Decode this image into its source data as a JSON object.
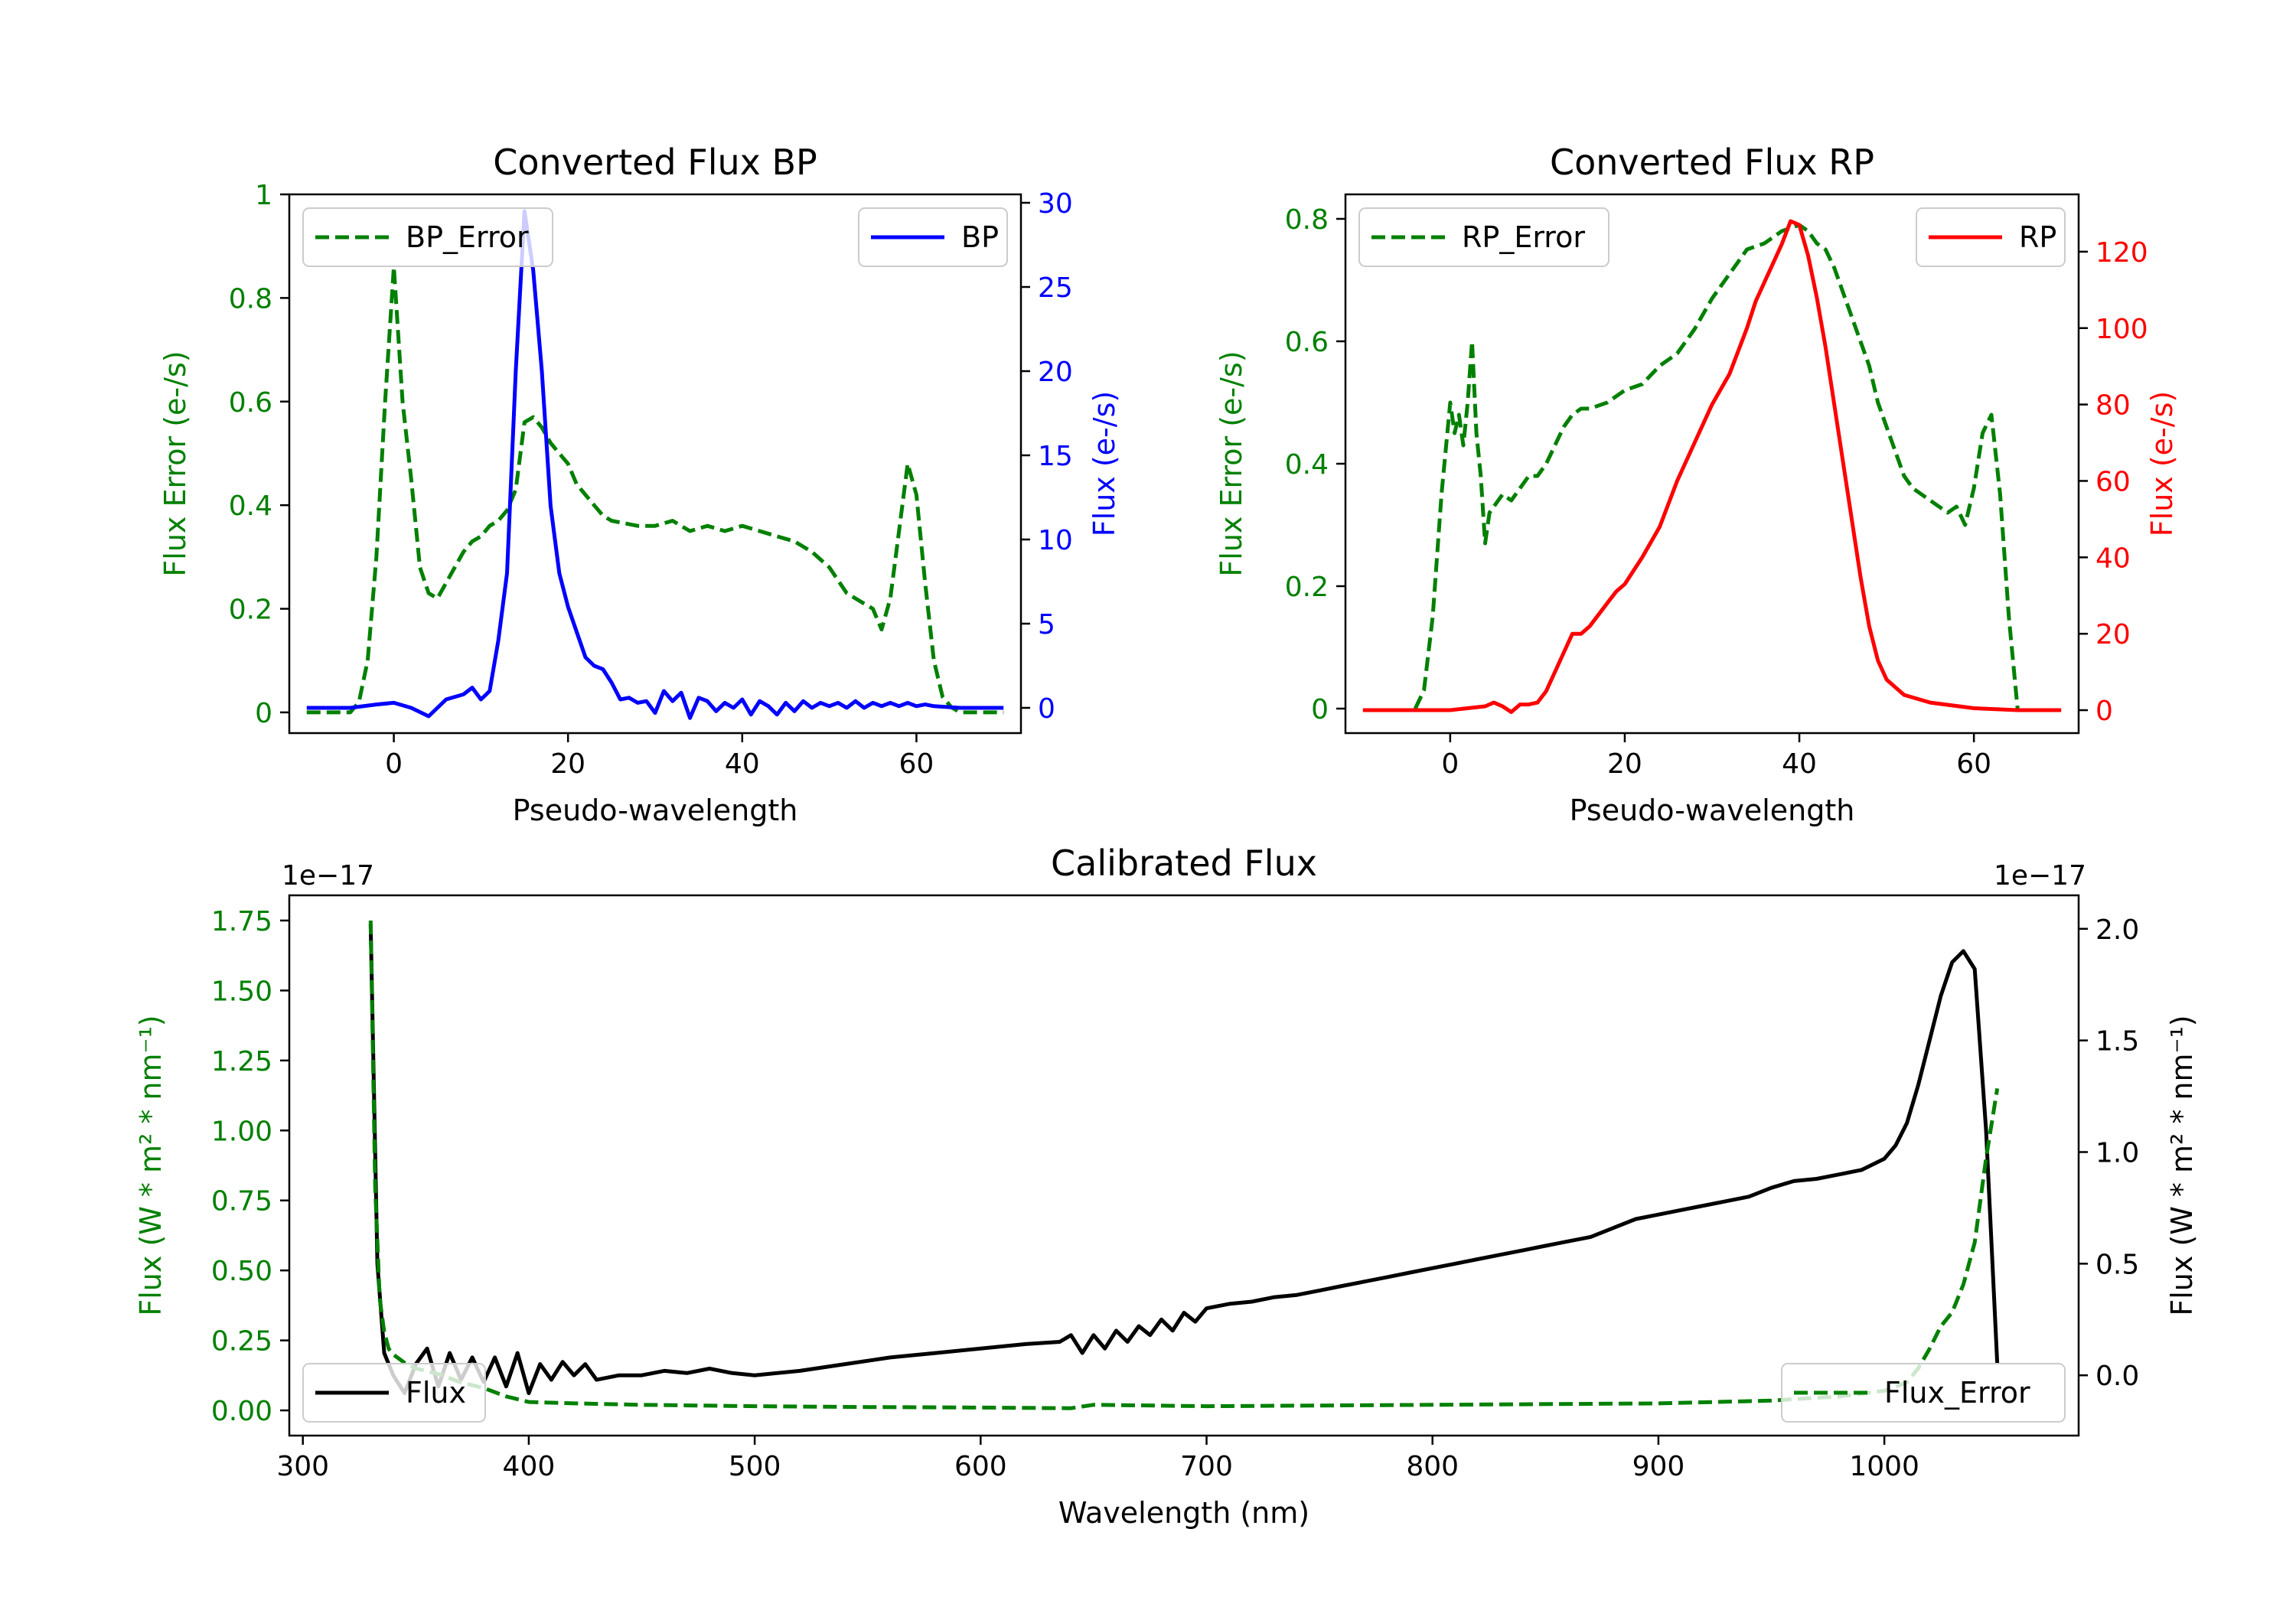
{
  "chart_data": [
    {
      "type": "line",
      "title": "Converted Flux BP",
      "xlabel": "Pseudo-wavelength",
      "xlim": [
        -12,
        72
      ],
      "xticks": [
        0,
        20,
        40,
        60
      ],
      "left_axis": {
        "label": "Flux Error (e-/s)",
        "color": "#008000",
        "ylim": [
          -0.04,
          1.0
        ],
        "ticks": [
          0.0,
          0.2,
          0.4,
          0.6,
          0.8,
          1.0
        ]
      },
      "right_axis": {
        "label": "Flux (e-/s)",
        "color": "#0000ff",
        "ylim": [
          -1.5,
          30.5
        ],
        "ticks": [
          0,
          5,
          10,
          15,
          20,
          25,
          30
        ]
      },
      "series": [
        {
          "name": "BP_Error",
          "axis": "left",
          "style": "dashed",
          "color": "#008000",
          "x": [
            -10,
            -5,
            -4,
            -3,
            -2,
            -1,
            0,
            1,
            2,
            3,
            4,
            5,
            6,
            7,
            8,
            9,
            10,
            11,
            12,
            13,
            14,
            15,
            16,
            17,
            18,
            19,
            20,
            21,
            22,
            23,
            24,
            25,
            28,
            30,
            32,
            34,
            36,
            38,
            40,
            42,
            44,
            46,
            48,
            50,
            52,
            54,
            55,
            56,
            57,
            58,
            59,
            60,
            61,
            62,
            63,
            64,
            65,
            70
          ],
          "y": [
            0.0,
            0.0,
            0.02,
            0.1,
            0.3,
            0.6,
            0.86,
            0.6,
            0.45,
            0.28,
            0.23,
            0.22,
            0.25,
            0.28,
            0.31,
            0.33,
            0.34,
            0.36,
            0.37,
            0.39,
            0.43,
            0.56,
            0.57,
            0.55,
            0.52,
            0.5,
            0.48,
            0.44,
            0.42,
            0.4,
            0.38,
            0.37,
            0.36,
            0.36,
            0.37,
            0.35,
            0.36,
            0.35,
            0.36,
            0.35,
            0.34,
            0.33,
            0.31,
            0.28,
            0.23,
            0.21,
            0.2,
            0.16,
            0.22,
            0.35,
            0.48,
            0.42,
            0.25,
            0.1,
            0.03,
            0.01,
            0.0,
            0.0
          ]
        },
        {
          "name": "BP",
          "axis": "right",
          "style": "solid",
          "color": "#0000ff",
          "x": [
            -10,
            -5,
            -2,
            0,
            2,
            4,
            6,
            8,
            9,
            10,
            11,
            12,
            13,
            14,
            15,
            16,
            17,
            18,
            19,
            20,
            21,
            22,
            23,
            24,
            25,
            26,
            27,
            28,
            29,
            30,
            31,
            32,
            33,
            34,
            35,
            36,
            37,
            38,
            39,
            40,
            41,
            42,
            43,
            44,
            45,
            46,
            47,
            48,
            49,
            50,
            51,
            52,
            53,
            54,
            55,
            56,
            57,
            58,
            59,
            60,
            61,
            62,
            65,
            70
          ],
          "y": [
            0,
            0,
            0.2,
            0.3,
            0.0,
            -0.5,
            0.5,
            0.8,
            1.2,
            0.5,
            1.0,
            4.0,
            8.0,
            20.0,
            29.5,
            26.0,
            20.0,
            12.0,
            8.0,
            6.0,
            4.5,
            3.0,
            2.5,
            2.3,
            1.5,
            0.5,
            0.6,
            0.3,
            0.4,
            -0.3,
            1.0,
            0.4,
            0.9,
            -0.6,
            0.6,
            0.4,
            -0.2,
            0.3,
            0.0,
            0.5,
            -0.4,
            0.4,
            0.1,
            -0.4,
            0.3,
            -0.2,
            0.4,
            0.0,
            0.3,
            0.1,
            0.3,
            0.0,
            0.4,
            0.0,
            0.3,
            0.1,
            0.3,
            0.1,
            0.3,
            0.1,
            0.2,
            0.1,
            0.0,
            0.0
          ]
        }
      ],
      "legend": [
        {
          "label": "BP_Error",
          "position": "upper-left"
        },
        {
          "label": "BP",
          "position": "upper-right"
        }
      ]
    },
    {
      "type": "line",
      "title": "Converted Flux RP",
      "xlabel": "Pseudo-wavelength",
      "xlim": [
        -12,
        72
      ],
      "xticks": [
        0,
        20,
        40,
        60
      ],
      "left_axis": {
        "label": "Flux Error (e-/s)",
        "color": "#008000",
        "ylim": [
          -0.04,
          0.84
        ],
        "ticks": [
          0.0,
          0.2,
          0.4,
          0.6,
          0.8
        ]
      },
      "right_axis": {
        "label": "Flux (e-/s)",
        "color": "#ff0000",
        "ylim": [
          -6,
          135
        ],
        "ticks": [
          0,
          20,
          40,
          60,
          80,
          100,
          120
        ]
      },
      "series": [
        {
          "name": "RP_Error",
          "axis": "left",
          "style": "dashed",
          "color": "#008000",
          "x": [
            -4,
            -3,
            -2,
            -1,
            0,
            0.5,
            1,
            1.5,
            2,
            2.5,
            3,
            3.5,
            4,
            4.5,
            5,
            6,
            7,
            8,
            9,
            10,
            11,
            12,
            13,
            14,
            15,
            16,
            18,
            20,
            22,
            24,
            26,
            28,
            30,
            32,
            34,
            36,
            38,
            40,
            41,
            42,
            43,
            44,
            45,
            46,
            47,
            48,
            49,
            50,
            51,
            52,
            53,
            54,
            55,
            56,
            57,
            58,
            59,
            60,
            61,
            62,
            63,
            64,
            65
          ],
          "y": [
            0.0,
            0.03,
            0.15,
            0.35,
            0.5,
            0.45,
            0.48,
            0.43,
            0.5,
            0.6,
            0.45,
            0.38,
            0.27,
            0.32,
            0.33,
            0.35,
            0.34,
            0.36,
            0.38,
            0.38,
            0.4,
            0.43,
            0.46,
            0.48,
            0.49,
            0.49,
            0.5,
            0.52,
            0.53,
            0.56,
            0.58,
            0.62,
            0.67,
            0.71,
            0.75,
            0.76,
            0.78,
            0.79,
            0.78,
            0.76,
            0.75,
            0.72,
            0.68,
            0.64,
            0.6,
            0.56,
            0.5,
            0.46,
            0.42,
            0.38,
            0.36,
            0.35,
            0.34,
            0.33,
            0.32,
            0.33,
            0.3,
            0.36,
            0.45,
            0.48,
            0.35,
            0.15,
            0.0
          ]
        },
        {
          "name": "RP",
          "axis": "right",
          "style": "solid",
          "color": "#ff0000",
          "x": [
            -10,
            -5,
            0,
            2,
            4,
            5,
            6,
            7,
            8,
            9,
            10,
            11,
            12,
            13,
            14,
            15,
            16,
            17,
            18,
            19,
            20,
            22,
            24,
            26,
            28,
            30,
            32,
            34,
            35,
            36,
            37,
            38,
            39,
            40,
            41,
            42,
            43,
            44,
            45,
            46,
            47,
            48,
            49,
            50,
            52,
            55,
            60,
            65,
            70
          ],
          "y": [
            0,
            0,
            0,
            0.5,
            1,
            2,
            1,
            -0.5,
            1.5,
            1.5,
            2,
            5,
            10,
            15,
            20,
            20,
            22,
            25,
            28,
            31,
            33,
            40,
            48,
            60,
            70,
            80,
            88,
            100,
            107,
            112,
            117,
            122,
            128,
            127,
            119,
            108,
            95,
            80,
            65,
            50,
            35,
            22,
            13,
            8,
            4,
            2,
            0.5,
            0,
            0
          ]
        }
      ],
      "legend": [
        {
          "label": "RP_Error",
          "position": "upper-left"
        },
        {
          "label": "RP",
          "position": "upper-right"
        }
      ]
    },
    {
      "type": "line",
      "title": "Calibrated Flux",
      "xlabel": "Wavelength (nm)",
      "xlim": [
        294,
        1086
      ],
      "xticks": [
        300,
        400,
        500,
        600,
        700,
        800,
        900,
        1000
      ],
      "left_axis": {
        "label": "Flux (W * m² * nm⁻¹)",
        "color": "#008000",
        "ylim": [
          -0.09,
          1.84
        ],
        "ticks": [
          "0.00",
          "0.25",
          "0.50",
          "0.75",
          "1.00",
          "1.25",
          "1.50",
          "1.75"
        ],
        "offset": "1e−17"
      },
      "right_axis": {
        "label": "Flux (W * m² * nm⁻¹)",
        "color": "#000000",
        "ylim": [
          -0.27,
          2.15
        ],
        "ticks": [
          "0.0",
          "0.5",
          "1.0",
          "1.5",
          "2.0"
        ],
        "offset": "1e−17"
      },
      "series": [
        {
          "name": "Flux",
          "axis": "right",
          "style": "solid",
          "color": "#000000",
          "x": [
            330,
            333,
            336,
            340,
            345,
            350,
            355,
            360,
            365,
            370,
            375,
            380,
            385,
            390,
            395,
            400,
            405,
            410,
            415,
            420,
            425,
            430,
            440,
            450,
            460,
            470,
            480,
            490,
            500,
            520,
            540,
            560,
            580,
            600,
            620,
            635,
            640,
            645,
            650,
            655,
            660,
            665,
            670,
            675,
            680,
            685,
            690,
            695,
            700,
            710,
            720,
            730,
            740,
            750,
            760,
            770,
            780,
            790,
            800,
            810,
            820,
            830,
            840,
            850,
            860,
            870,
            880,
            890,
            900,
            910,
            920,
            930,
            940,
            950,
            960,
            970,
            980,
            990,
            1000,
            1005,
            1010,
            1015,
            1020,
            1025,
            1030,
            1035,
            1040,
            1045,
            1050
          ],
          "y": [
            2.02,
            0.5,
            0.1,
            0.0,
            -0.08,
            0.05,
            0.12,
            -0.05,
            0.1,
            -0.02,
            0.08,
            -0.03,
            0.08,
            -0.05,
            0.1,
            -0.08,
            0.05,
            -0.02,
            0.06,
            0.0,
            0.05,
            -0.02,
            0.0,
            0.0,
            0.02,
            0.01,
            0.03,
            0.01,
            0.0,
            0.02,
            0.05,
            0.08,
            0.1,
            0.12,
            0.14,
            0.15,
            0.18,
            0.1,
            0.18,
            0.12,
            0.2,
            0.15,
            0.22,
            0.18,
            0.25,
            0.2,
            0.28,
            0.24,
            0.3,
            0.32,
            0.33,
            0.35,
            0.36,
            0.38,
            0.4,
            0.42,
            0.44,
            0.46,
            0.48,
            0.5,
            0.52,
            0.54,
            0.56,
            0.58,
            0.6,
            0.62,
            0.66,
            0.7,
            0.72,
            0.74,
            0.76,
            0.78,
            0.8,
            0.84,
            0.87,
            0.88,
            0.9,
            0.92,
            0.97,
            1.03,
            1.13,
            1.3,
            1.5,
            1.7,
            1.85,
            1.9,
            1.82,
            1.1,
            0.05
          ]
        },
        {
          "name": "Flux_Error",
          "axis": "left",
          "style": "dashed",
          "color": "#008000",
          "x": [
            330,
            332,
            334,
            336,
            338,
            340,
            345,
            350,
            360,
            370,
            380,
            390,
            400,
            420,
            450,
            500,
            550,
            600,
            640,
            650,
            700,
            800,
            900,
            950,
            980,
            1000,
            1010,
            1015,
            1020,
            1025,
            1030,
            1035,
            1040,
            1045,
            1050
          ],
          "y": [
            1.75,
            0.8,
            0.4,
            0.28,
            0.22,
            0.2,
            0.17,
            0.15,
            0.13,
            0.1,
            0.08,
            0.05,
            0.03,
            0.025,
            0.02,
            0.015,
            0.012,
            0.01,
            0.008,
            0.02,
            0.015,
            0.02,
            0.025,
            0.035,
            0.05,
            0.07,
            0.1,
            0.15,
            0.22,
            0.3,
            0.35,
            0.45,
            0.6,
            0.9,
            1.15
          ]
        }
      ],
      "legend": [
        {
          "label": "Flux",
          "position": "lower-left"
        },
        {
          "label": "Flux_Error",
          "position": "lower-right"
        }
      ]
    }
  ]
}
